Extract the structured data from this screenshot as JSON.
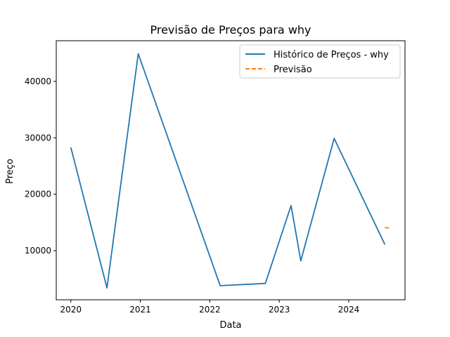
{
  "chart_data": {
    "type": "line",
    "title": "Previsão de Preços para why",
    "xlabel": "Data",
    "ylabel": "Preço",
    "x_ticks": [
      "2020",
      "2021",
      "2022",
      "2023",
      "2024"
    ],
    "y_ticks": [
      "10000",
      "20000",
      "30000",
      "40000"
    ],
    "xlim": [
      2019.79,
      2024.81
    ],
    "ylim": [
      1300,
      47200
    ],
    "grid": false,
    "legend_position": "top-right",
    "series": [
      {
        "name": "Histórico de Preços - why",
        "color": "#1f77b4",
        "style": "solid",
        "points": [
          [
            2020.0,
            28300
          ],
          [
            2020.52,
            3400
          ],
          [
            2020.97,
            44900
          ],
          [
            2022.15,
            3800
          ],
          [
            2022.8,
            4200
          ],
          [
            2023.17,
            18000
          ],
          [
            2023.31,
            8200
          ],
          [
            2023.79,
            29900
          ],
          [
            2024.52,
            11100
          ]
        ]
      },
      {
        "name": "Previsão",
        "color": "#ff7f0e",
        "style": "dashed",
        "points": [
          [
            2024.52,
            14100
          ],
          [
            2024.6,
            14000
          ]
        ]
      }
    ]
  }
}
